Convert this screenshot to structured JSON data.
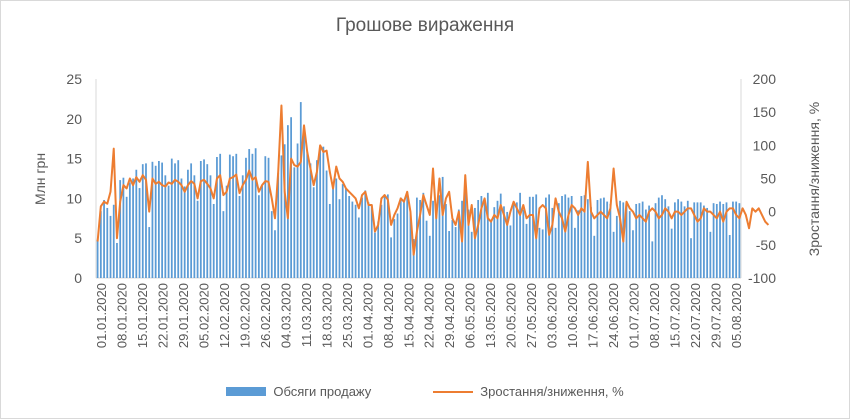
{
  "chart_data": {
    "type": "bar",
    "title": "Грошове вираження",
    "ylabel": "Млн грн",
    "y2label": "Зростання/зниження, %",
    "ylim": [
      0,
      25
    ],
    "y2lim": [
      -100,
      200
    ],
    "yticks": [
      "0",
      "5",
      "10",
      "15",
      "20",
      "25"
    ],
    "y2ticks": [
      "-100",
      "-50",
      "0",
      "50",
      "100",
      "150",
      "200"
    ],
    "x_tick_labels": [
      "01.01.2020",
      "08.01.2020",
      "15.01.2020",
      "22.01.2020",
      "29.01.2020",
      "05.02.2020",
      "12.02.2020",
      "19.02.2020",
      "26.02.2020",
      "04.03.2020",
      "11.03.2020",
      "18.03.2020",
      "25.03.2020",
      "01.04.2020",
      "08.04.2020",
      "15.04.2020",
      "22.04.2020",
      "29.04.2020",
      "06.05.2020",
      "13.05.2020",
      "20.05.2020",
      "27.05.2020",
      "03.06.2020",
      "10.06.2020",
      "17.06.2020",
      "24.06.2020",
      "01.07.2020",
      "08.07.2020",
      "15.07.2020",
      "22.07.2020",
      "29.07.2020",
      "05.08.2020"
    ],
    "grid": false,
    "legend_position": "bottom",
    "series": [
      {
        "name": "Обсяги продажу",
        "type": "bar",
        "axis": "primary",
        "color": "#5b9bd5",
        "values": [
          4.8,
          8.4,
          9.8,
          8.8,
          7.8,
          9.2,
          4.4,
          12.3,
          12.6,
          10.2,
          12.0,
          12.5,
          13.6,
          11.3,
          14.3,
          14.4,
          6.4,
          14.6,
          14.1,
          14.7,
          14.5,
          12.9,
          11.6,
          15.0,
          14.4,
          14.8,
          12.5,
          11.5,
          13.6,
          14.4,
          12.9,
          9.7,
          14.7,
          14.9,
          14.3,
          12.9,
          9.3,
          15.2,
          15.6,
          8.4,
          11.6,
          15.5,
          15.3,
          15.6,
          10.3,
          12.9,
          15.1,
          16.2,
          15.6,
          16.3,
          10.4,
          11.6,
          15.3,
          15.1,
          8.4,
          6.0,
          13.2,
          15.4,
          16.8,
          19.2,
          20.2,
          13.9,
          16.9,
          22.1,
          18.8,
          15.8,
          14.4,
          11.4,
          14.8,
          16.6,
          16.5,
          13.5,
          9.3,
          11.9,
          12.5,
          9.9,
          11.8,
          11.3,
          10.3,
          9.6,
          9.2,
          7.6,
          10.1,
          11.0,
          9.5,
          9.2,
          5.7,
          7.1,
          9.2,
          10.5,
          10.5,
          5.1,
          7.4,
          8.1,
          10.1,
          9.7,
          10.8,
          8.2,
          4.9,
          10.1,
          9.8,
          10.7,
          7.2,
          5.3,
          9.7,
          9.2,
          10.4,
          12.7,
          9.3,
          5.9,
          7.3,
          6.4,
          8.6,
          9.7,
          11.6,
          8.6,
          5.8,
          8.8,
          9.8,
          10.3,
          9.8,
          10.7,
          7.1,
          8.9,
          9.7,
          10.6,
          9.0,
          8.3,
          6.6,
          9.4,
          9.5,
          10.7,
          8.6,
          6.8,
          10.2,
          10.2,
          10.5,
          6.3,
          6.1,
          10.1,
          10.5,
          8.8,
          6.3,
          9.4,
          10.3,
          10.5,
          10.1,
          10.3,
          6.3,
          8.5,
          10.3,
          10.4,
          9.9,
          8.9,
          5.3,
          9.8,
          10.0,
          10.1,
          9.6,
          9.3,
          5.8,
          7.8,
          9.7,
          9.5,
          9.5,
          8.4,
          6.0,
          9.3,
          9.4,
          9.6,
          8.6,
          9.1,
          4.6,
          9.4,
          10.1,
          10.4,
          9.9,
          9.0,
          6.2,
          9.5,
          9.9,
          9.6,
          9.0,
          9.7,
          5.0,
          9.5,
          9.5,
          9.5,
          9.1,
          8.8,
          5.8,
          9.4,
          9.3,
          9.6,
          9.3,
          9.5,
          5.4,
          9.6,
          9.6,
          9.4
        ]
      },
      {
        "name": "Зростання/зниження, %",
        "type": "line",
        "axis": "secondary",
        "color": "#ed7d31",
        "values": [
          -45,
          8,
          15,
          12,
          30,
          95,
          -40,
          15,
          40,
          35,
          50,
          40,
          52,
          45,
          55,
          48,
          0,
          50,
          42,
          45,
          40,
          38,
          44,
          42,
          48,
          45,
          40,
          30,
          40,
          46,
          42,
          20,
          46,
          48,
          42,
          35,
          20,
          50,
          55,
          25,
          30,
          50,
          52,
          56,
          28,
          40,
          48,
          62,
          48,
          52,
          30,
          40,
          46,
          45,
          20,
          -10,
          60,
          160,
          30,
          -10,
          80,
          70,
          68,
          75,
          130,
          90,
          65,
          40,
          60,
          100,
          90,
          92,
          60,
          35,
          68,
          50,
          45,
          35,
          30,
          25,
          20,
          5,
          25,
          30,
          10,
          10,
          -30,
          -20,
          20,
          25,
          18,
          -20,
          -5,
          5,
          20,
          15,
          30,
          0,
          -65,
          -30,
          -5,
          25,
          10,
          -5,
          65,
          -10,
          50,
          -5,
          20,
          30,
          -10,
          -20,
          0,
          -45,
          55,
          -20,
          10,
          -40,
          -20,
          5,
          20,
          -10,
          -15,
          -5,
          -10,
          10,
          -5,
          -20,
          0,
          15,
          5,
          -5,
          10,
          -10,
          -5,
          -5,
          -40,
          5,
          10,
          5,
          -35,
          -20,
          20,
          0,
          -10,
          -30,
          -5,
          10,
          5,
          -5,
          5,
          0,
          75,
          0,
          -10,
          -5,
          0,
          -5,
          -10,
          5,
          65,
          10,
          -10,
          -45,
          15,
          5,
          0,
          -10,
          -5,
          -10,
          -15,
          0,
          5,
          0,
          -10,
          -5,
          5,
          0,
          -10,
          0,
          0,
          -5,
          0,
          5,
          5,
          -5,
          -15,
          -10,
          5,
          0,
          0,
          -5,
          -10,
          0,
          -15,
          0,
          5,
          5,
          -5,
          -10,
          5,
          -5,
          -25,
          5,
          0,
          5,
          -5,
          -15,
          -20
        ]
      }
    ]
  }
}
